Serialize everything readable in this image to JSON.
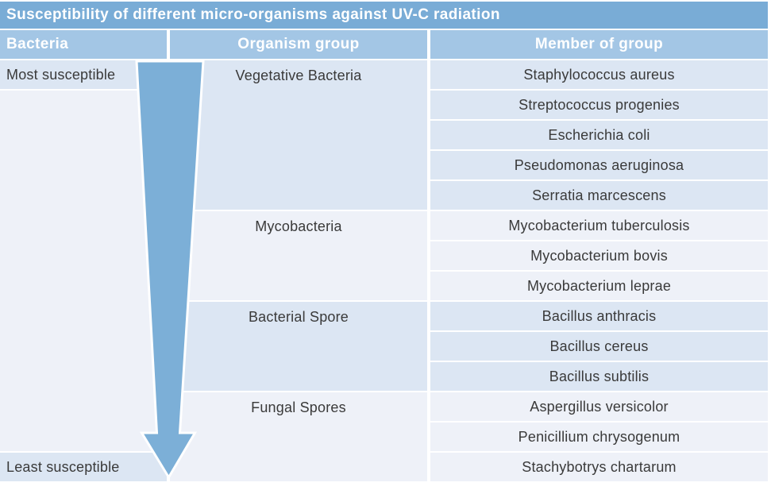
{
  "title": "Susceptibility of different micro-organisms against UV-C radiation",
  "columns": [
    {
      "label": "Bacteria"
    },
    {
      "label": "Organism group"
    },
    {
      "label": "Member of group"
    }
  ],
  "bacteria_axis": {
    "top_label": "Most susceptible",
    "bottom_label": "Least susceptible",
    "arrow_icon": "down-arrow"
  },
  "groups": [
    {
      "name": "Vegetative Bacteria",
      "members": [
        "Staphylococcus aureus",
        "Streptococcus progenies",
        "Escherichia coli",
        "Pseudomonas aeruginosa",
        "Serratia marcescens"
      ]
    },
    {
      "name": "Mycobacteria",
      "members": [
        "Mycobacterium tuberculosis",
        "Mycobacterium bovis",
        "Mycobacterium leprae"
      ]
    },
    {
      "name": "Bacterial Spore",
      "members": [
        "Bacillus anthracis",
        "Bacillus cereus",
        "Bacillus subtilis"
      ]
    },
    {
      "name": "Fungal Spores",
      "members": [
        "Aspergillus versicolor",
        "Penicillium chrysogenum",
        "Stachybotrys chartarum"
      ]
    }
  ],
  "colors": {
    "title_bar": "#79acd6",
    "header_row": "#a3c6e5",
    "band_strong": "#dce6f3",
    "band_pale": "#eef1f8",
    "arrow_fill": "#7cafd7",
    "text_dark": "#3a3a3a",
    "text_light": "#ffffff"
  },
  "chart_data": {
    "type": "table",
    "title": "Susceptibility of different micro-organisms against UV-C radiation",
    "column_headers": [
      "Bacteria",
      "Organism group",
      "Member of group"
    ],
    "susceptibility_scale": {
      "most": "Most susceptible",
      "least": "Least susceptible",
      "direction": "top-to-bottom decreasing"
    },
    "rows": [
      {
        "organism_group": "Vegetative Bacteria",
        "member": "Staphylococcus aureus"
      },
      {
        "organism_group": "Vegetative Bacteria",
        "member": "Streptococcus progenies"
      },
      {
        "organism_group": "Vegetative Bacteria",
        "member": "Escherichia coli"
      },
      {
        "organism_group": "Vegetative Bacteria",
        "member": "Pseudomonas aeruginosa"
      },
      {
        "organism_group": "Vegetative Bacteria",
        "member": "Serratia marcescens"
      },
      {
        "organism_group": "Mycobacteria",
        "member": "Mycobacterium tuberculosis"
      },
      {
        "organism_group": "Mycobacteria",
        "member": "Mycobacterium bovis"
      },
      {
        "organism_group": "Mycobacteria",
        "member": "Mycobacterium leprae"
      },
      {
        "organism_group": "Bacterial Spore",
        "member": "Bacillus anthracis"
      },
      {
        "organism_group": "Bacterial Spore",
        "member": "Bacillus cereus"
      },
      {
        "organism_group": "Bacterial Spore",
        "member": "Bacillus subtilis"
      },
      {
        "organism_group": "Fungal Spores",
        "member": "Aspergillus versicolor"
      },
      {
        "organism_group": "Fungal Spores",
        "member": "Penicillium chrysogenum"
      },
      {
        "organism_group": "Fungal Spores",
        "member": "Stachybotrys chartarum"
      }
    ]
  }
}
